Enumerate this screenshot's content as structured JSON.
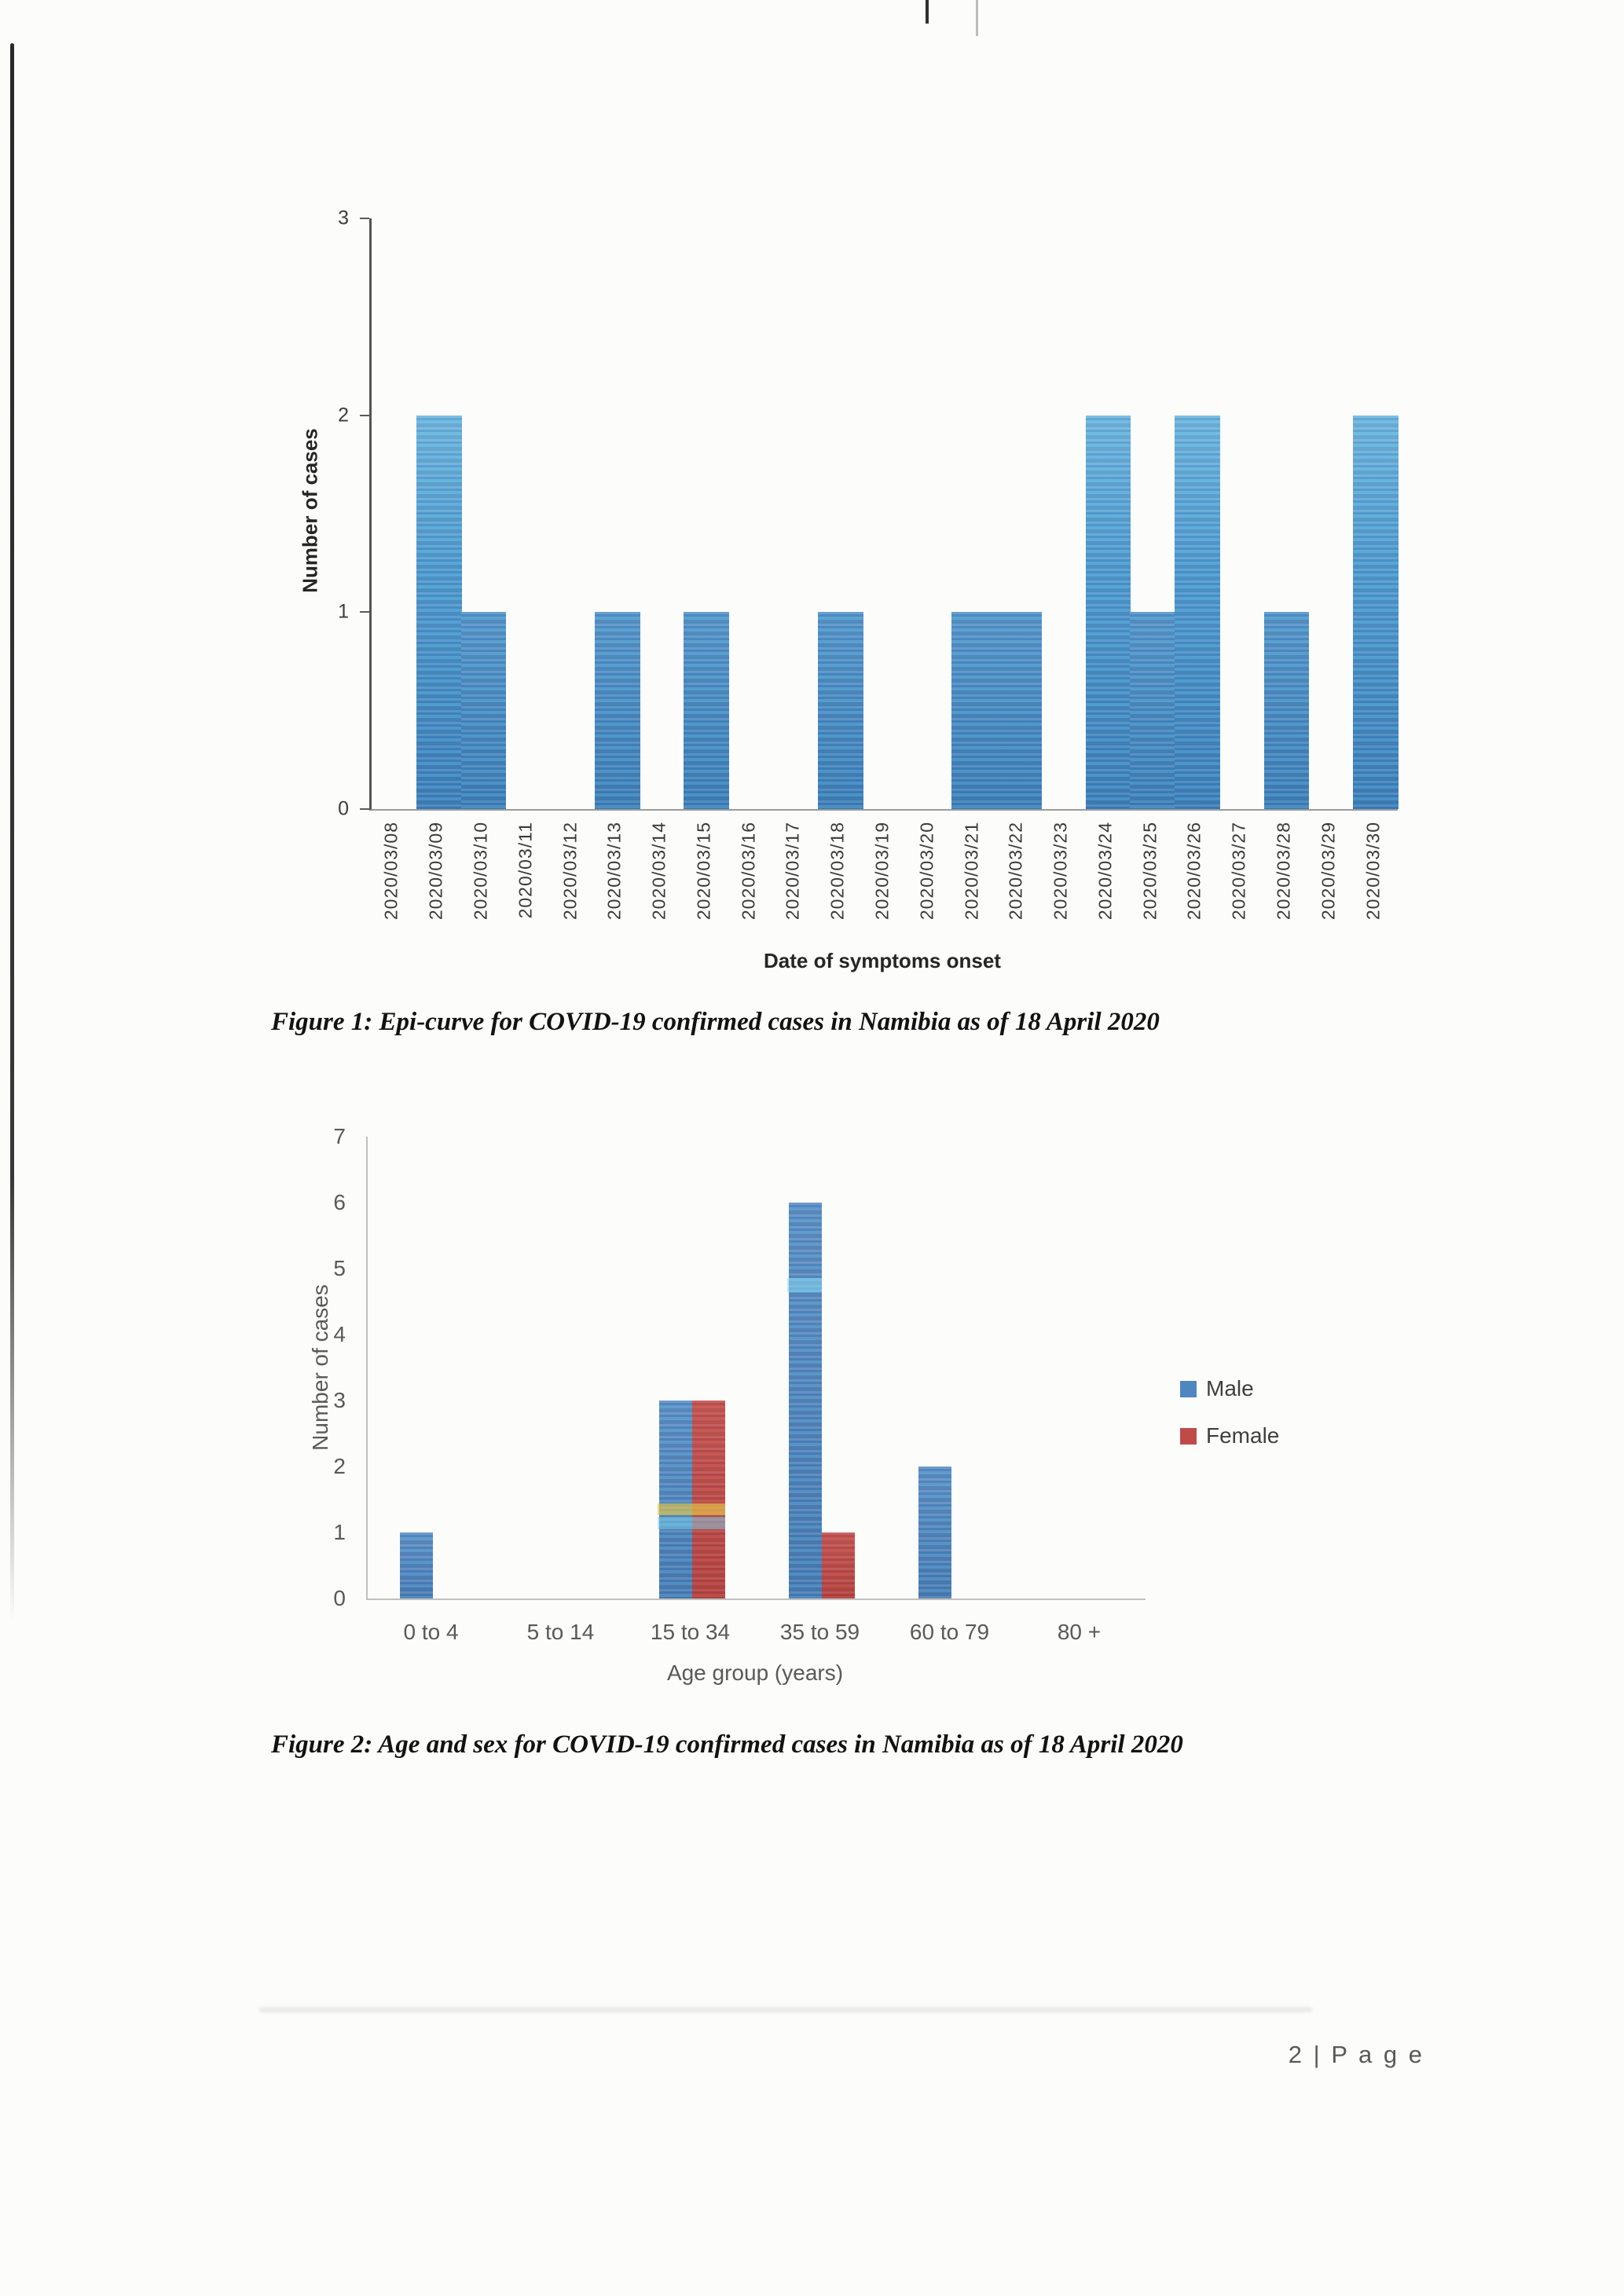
{
  "page": {
    "footer": "2 | P a g e"
  },
  "figure1": {
    "caption": "Figure 1: Epi-curve for COVID-19 confirmed cases in Namibia as of 18 April 2020"
  },
  "figure2": {
    "caption": "Figure 2: Age and sex for COVID-19 confirmed cases in Namibia as of 18 April 2020"
  },
  "chart_data": [
    {
      "type": "bar",
      "title": "",
      "xlabel": "Date of symptoms onset",
      "ylabel": "Number of cases",
      "ylim": [
        0,
        3
      ],
      "yticks": [
        0,
        1,
        2,
        3
      ],
      "grid": false,
      "legend": "none",
      "bar_color": "#4389c4",
      "categories": [
        "2020/03/08",
        "2020/03/09",
        "2020/03/10",
        "2020/03/11",
        "2020/03/12",
        "2020/03/13",
        "2020/03/14",
        "2020/03/15",
        "2020/03/16",
        "2020/03/17",
        "2020/03/18",
        "2020/03/19",
        "2020/03/20",
        "2020/03/21",
        "2020/03/22",
        "2020/03/23",
        "2020/03/24",
        "2020/03/25",
        "2020/03/26",
        "2020/03/27",
        "2020/03/28",
        "2020/03/29",
        "2020/03/30"
      ],
      "values": [
        0,
        2,
        1,
        0,
        0,
        1,
        0,
        1,
        0,
        0,
        1,
        0,
        0,
        1,
        1,
        0,
        2,
        1,
        2,
        0,
        1,
        0,
        2
      ]
    },
    {
      "type": "bar",
      "title": "",
      "xlabel": "Age group (years)",
      "ylabel": "Number of cases",
      "ylim": [
        0,
        7
      ],
      "yticks": [
        0,
        1,
        2,
        3,
        4,
        5,
        6,
        7
      ],
      "grid": false,
      "legend_position": "right",
      "categories": [
        "0 to 4",
        "5 to 14",
        "15 to 34",
        "35 to 59",
        "60 to 79",
        "80 +"
      ],
      "series": [
        {
          "name": "Male",
          "color": "#4f86c0",
          "values": [
            1,
            0,
            3,
            6,
            2,
            0
          ]
        },
        {
          "name": "Female",
          "color": "#bf4b48",
          "values": [
            0,
            0,
            3,
            1,
            0,
            0
          ]
        }
      ]
    }
  ]
}
